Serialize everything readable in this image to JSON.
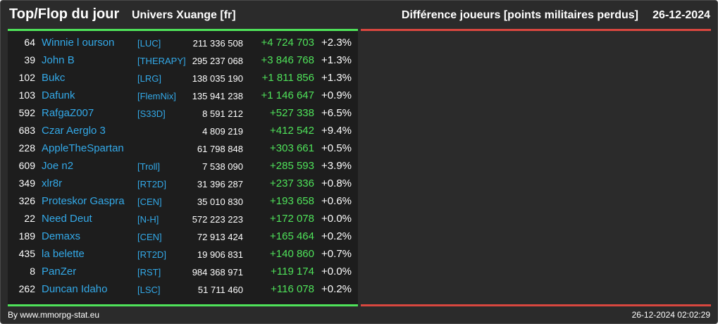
{
  "header": {
    "title": "Top/Flop du jour",
    "universe": "Univers Xuange [fr]",
    "metric": "Différence joueurs [points militaires perdus]",
    "date": "26-12-2024"
  },
  "colors": {
    "background": "#2b2b2b",
    "top_panel": "#1d1d1d",
    "top_accent": "#4fe35a",
    "flop_accent": "#d9473f",
    "link": "#33a9e8",
    "positive": "#4fe35a"
  },
  "top_rows": [
    {
      "rank": "64",
      "player": "Winnie l ourson",
      "alliance": "[LUC]",
      "points": "211 336 508",
      "delta": "+4 724 703",
      "pct": "+2.3%"
    },
    {
      "rank": "39",
      "player": "John B",
      "alliance": "[THERAPY]",
      "points": "295 237 068",
      "delta": "+3 846 768",
      "pct": "+1.3%"
    },
    {
      "rank": "102",
      "player": "Bukc",
      "alliance": "[LRG]",
      "points": "138 035 190",
      "delta": "+1 811 856",
      "pct": "+1.3%"
    },
    {
      "rank": "103",
      "player": "Dafunk",
      "alliance": "[FlemNix]",
      "points": "135 941 238",
      "delta": "+1 146 647",
      "pct": "+0.9%"
    },
    {
      "rank": "592",
      "player": "RafgaZ007",
      "alliance": "[S33D]",
      "points": "8 591 212",
      "delta": "+527 338",
      "pct": "+6.5%"
    },
    {
      "rank": "683",
      "player": "Czar Aerglo 3",
      "alliance": "",
      "points": "4 809 219",
      "delta": "+412 542",
      "pct": "+9.4%"
    },
    {
      "rank": "228",
      "player": "AppleTheSpartan",
      "alliance": "",
      "points": "61 798 848",
      "delta": "+303 661",
      "pct": "+0.5%"
    },
    {
      "rank": "609",
      "player": "Joe n2",
      "alliance": "[Troll]",
      "points": "7 538 090",
      "delta": "+285 593",
      "pct": "+3.9%"
    },
    {
      "rank": "349",
      "player": "xlr8r",
      "alliance": "[RT2D]",
      "points": "31 396 287",
      "delta": "+237 336",
      "pct": "+0.8%"
    },
    {
      "rank": "326",
      "player": "Proteskor Gaspra",
      "alliance": "[CEN]",
      "points": "35 010 830",
      "delta": "+193 658",
      "pct": "+0.6%"
    },
    {
      "rank": "22",
      "player": "Need Deut",
      "alliance": "[N-H]",
      "points": "572 223 223",
      "delta": "+172 078",
      "pct": "+0.0%"
    },
    {
      "rank": "189",
      "player": "Demaxs",
      "alliance": "[CEN]",
      "points": "72 913 424",
      "delta": "+165 464",
      "pct": "+0.2%"
    },
    {
      "rank": "435",
      "player": "la belette",
      "alliance": "[RT2D]",
      "points": "19 906 831",
      "delta": "+140 860",
      "pct": "+0.7%"
    },
    {
      "rank": "8",
      "player": "PanZer",
      "alliance": "[RST]",
      "points": "984 368 971",
      "delta": "+119 174",
      "pct": "+0.0%"
    },
    {
      "rank": "262",
      "player": "Duncan Idaho",
      "alliance": "[LSC]",
      "points": "51 711 460",
      "delta": "+116 078",
      "pct": "+0.2%"
    }
  ],
  "footer": {
    "credit": "By www.mmorpg-stat.eu",
    "timestamp": "26-12-2024 02:02:29"
  }
}
